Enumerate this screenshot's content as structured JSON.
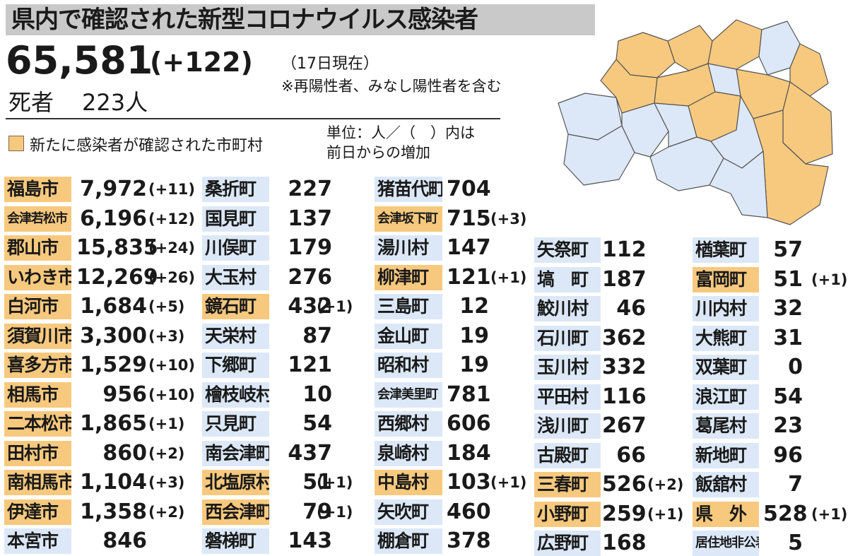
{
  "title": "県内で確認された新型コロナウイルス感染者",
  "total": {
    "value": "65,581",
    "change": "(+122)"
  },
  "as_of": "（17日現在）",
  "note": "※再陽性者、みなし陽性者を含む",
  "deaths": {
    "label": "死者",
    "value": "223人"
  },
  "legend": {
    "label": "新たに感染者が確認された市町村",
    "color": "#f7c97e"
  },
  "unit_note": {
    "line1": "単位：人／（　）内は",
    "line2": "前日からの増加"
  },
  "colors": {
    "new_case": "#f7c97e",
    "no_new_case": "#dce8f7",
    "title_bar": "#c9c9c9"
  },
  "municipalities": [
    [
      {
        "name": "福島市",
        "count": "7,972",
        "change": "(+11)",
        "highlight": true
      },
      {
        "name": "会津若松市",
        "count": "6,196",
        "change": "(+12)",
        "highlight": true
      },
      {
        "name": "郡山市",
        "count": "15,835",
        "change": "(+24)",
        "highlight": true
      },
      {
        "name": "いわき市",
        "count": "12,269",
        "change": "(+26)",
        "highlight": true
      },
      {
        "name": "白河市",
        "count": "1,684",
        "change": "(+5)",
        "highlight": true
      },
      {
        "name": "須賀川市",
        "count": "3,300",
        "change": "(+3)",
        "highlight": true
      },
      {
        "name": "喜多方市",
        "count": "1,529",
        "change": "(+10)",
        "highlight": true
      },
      {
        "name": "相馬市",
        "count": "956",
        "change": "(+10)",
        "highlight": true
      },
      {
        "name": "二本松市",
        "count": "1,865",
        "change": "(+1)",
        "highlight": true
      },
      {
        "name": "田村市",
        "count": "860",
        "change": "(+2)",
        "highlight": true
      },
      {
        "name": "南相馬市",
        "count": "1,104",
        "change": "(+3)",
        "highlight": true
      },
      {
        "name": "伊達市",
        "count": "1,358",
        "change": "(+2)",
        "highlight": true
      },
      {
        "name": "本宮市",
        "count": "846",
        "change": "",
        "highlight": false
      }
    ],
    [
      {
        "name": "桑折町",
        "count": "227",
        "change": "",
        "highlight": false
      },
      {
        "name": "国見町",
        "count": "137",
        "change": "",
        "highlight": false
      },
      {
        "name": "川俣町",
        "count": "179",
        "change": "",
        "highlight": false
      },
      {
        "name": "大玉村",
        "count": "276",
        "change": "",
        "highlight": false
      },
      {
        "name": "鏡石町",
        "count": "432",
        "change": "(+1)",
        "highlight": true
      },
      {
        "name": "天栄村",
        "count": "87",
        "change": "",
        "highlight": false
      },
      {
        "name": "下郷町",
        "count": "121",
        "change": "",
        "highlight": false
      },
      {
        "name": "檜枝岐村",
        "count": "10",
        "change": "",
        "highlight": false
      },
      {
        "name": "只見町",
        "count": "54",
        "change": "",
        "highlight": false
      },
      {
        "name": "南会津町",
        "count": "437",
        "change": "",
        "highlight": false
      },
      {
        "name": "北塩原村",
        "count": "51",
        "change": "(+1)",
        "highlight": true
      },
      {
        "name": "西会津町",
        "count": "79",
        "change": "(+1)",
        "highlight": true
      },
      {
        "name": "磐梯町",
        "count": "143",
        "change": "",
        "highlight": false
      }
    ],
    [
      {
        "name": "猪苗代町",
        "count": "704",
        "change": "",
        "highlight": false
      },
      {
        "name": "会津坂下町",
        "count": "715",
        "change": "(+3)",
        "highlight": true
      },
      {
        "name": "湯川村",
        "count": "147",
        "change": "",
        "highlight": false
      },
      {
        "name": "柳津町",
        "count": "121",
        "change": "(+1)",
        "highlight": true
      },
      {
        "name": "三島町",
        "count": "12",
        "change": "",
        "highlight": false
      },
      {
        "name": "金山町",
        "count": "19",
        "change": "",
        "highlight": false
      },
      {
        "name": "昭和村",
        "count": "19",
        "change": "",
        "highlight": false
      },
      {
        "name": "会津美里町",
        "count": "781",
        "change": "",
        "highlight": false
      },
      {
        "name": "西郷村",
        "count": "606",
        "change": "",
        "highlight": false
      },
      {
        "name": "泉崎村",
        "count": "184",
        "change": "",
        "highlight": false
      },
      {
        "name": "中島村",
        "count": "103",
        "change": "(+1)",
        "highlight": true
      },
      {
        "name": "矢吹町",
        "count": "460",
        "change": "",
        "highlight": false
      },
      {
        "name": "棚倉町",
        "count": "378",
        "change": "",
        "highlight": false
      }
    ],
    [
      {
        "name": "矢祭町",
        "count": "112",
        "change": "",
        "highlight": false
      },
      {
        "name": "塙　町",
        "count": "187",
        "change": "",
        "highlight": false
      },
      {
        "name": "鮫川村",
        "count": "46",
        "change": "",
        "highlight": false
      },
      {
        "name": "石川町",
        "count": "362",
        "change": "",
        "highlight": false
      },
      {
        "name": "玉川村",
        "count": "332",
        "change": "",
        "highlight": false
      },
      {
        "name": "平田村",
        "count": "116",
        "change": "",
        "highlight": false
      },
      {
        "name": "浅川町",
        "count": "267",
        "change": "",
        "highlight": false
      },
      {
        "name": "古殿町",
        "count": "66",
        "change": "",
        "highlight": false
      },
      {
        "name": "三春町",
        "count": "526",
        "change": "(+2)",
        "highlight": true
      },
      {
        "name": "小野町",
        "count": "259",
        "change": "(+1)",
        "highlight": true
      },
      {
        "name": "広野町",
        "count": "168",
        "change": "",
        "highlight": false
      }
    ],
    [
      {
        "name": "楢葉町",
        "count": "57",
        "change": "",
        "highlight": false
      },
      {
        "name": "富岡町",
        "count": "51",
        "change": "(+1)",
        "highlight": true
      },
      {
        "name": "川内村",
        "count": "32",
        "change": "",
        "highlight": false
      },
      {
        "name": "大熊町",
        "count": "31",
        "change": "",
        "highlight": false
      },
      {
        "name": "双葉町",
        "count": "0",
        "change": "",
        "highlight": false
      },
      {
        "name": "浪江町",
        "count": "54",
        "change": "",
        "highlight": false
      },
      {
        "name": "葛尾村",
        "count": "23",
        "change": "",
        "highlight": false
      },
      {
        "name": "新地町",
        "count": "96",
        "change": "",
        "highlight": false
      },
      {
        "name": "飯舘村",
        "count": "7",
        "change": "",
        "highlight": false
      },
      {
        "name": "県　外",
        "count": "528",
        "change": "(+1)",
        "highlight": true
      },
      {
        "name": "居住地非公表",
        "count": "5",
        "change": "",
        "highlight": false
      }
    ]
  ]
}
